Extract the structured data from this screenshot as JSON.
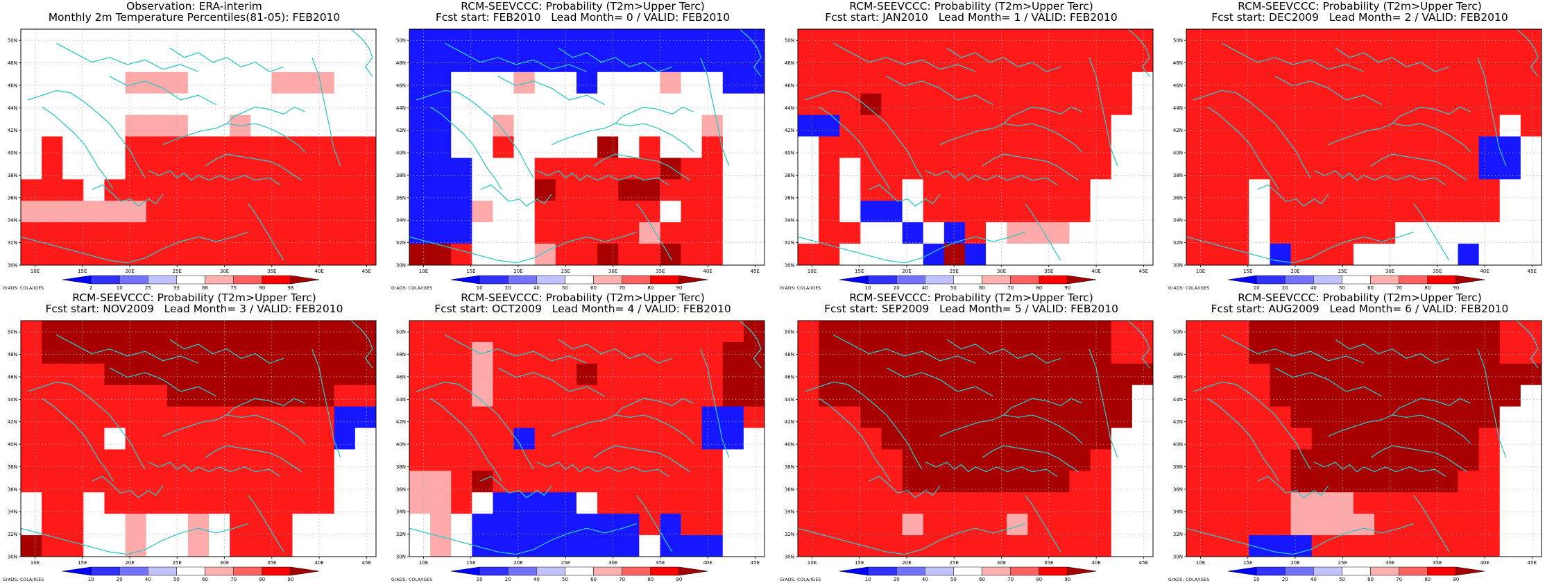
{
  "axes": {
    "lon_labels": [
      "10E",
      "15E",
      "20E",
      "25E",
      "30E",
      "35E",
      "40E",
      "45E"
    ],
    "lat_labels": [
      "30N",
      "32N",
      "34N",
      "36N",
      "38N",
      "40N",
      "42N",
      "44N",
      "46N",
      "48N",
      "50N"
    ],
    "lon_range": [
      8.5,
      46.0
    ],
    "lat_range": [
      30.0,
      51.0
    ]
  },
  "credit": "GrADS: COLA/IGES",
  "coastline_color": "#2fc6c6",
  "colorbars": {
    "obs": {
      "labels": [
        "2",
        "10",
        "25",
        "33",
        "66",
        "75",
        "90",
        "98"
      ],
      "colors": [
        "#0000ff",
        "#3030ff",
        "#7373ff",
        "#c2c2ff",
        "#ffffff",
        "#ffb0b0",
        "#ff6060",
        "#ff0000",
        "#a00000"
      ]
    },
    "prob": {
      "labels": [
        "10",
        "20",
        "40",
        "50",
        "60",
        "70",
        "80",
        "90"
      ],
      "colors": [
        "#0000ff",
        "#3030ff",
        "#7373ff",
        "#c2c2ff",
        "#ffffff",
        "#ffb0b0",
        "#ff6060",
        "#ff0000",
        "#a00000"
      ]
    }
  },
  "panels": [
    {
      "title1": "Observation: ERA-interim",
      "title2": "Monthly 2m Temperature Percentiles(81-05): FEB2010",
      "bar": "obs",
      "grid": [
        "wwwwwwwwwwwwwwwww",
        "wwwwwwwwwwwwwwwww",
        "wwwwwpppwwwwpppww",
        "wwwwwwwwwwwwwwwww",
        "wwwwwpppwwpwwwwww",
        "wrwwwrrrrrrrrrrrr",
        "wrwwwrrrrrrrrrrrr",
        "rrrwrrrrrrrrrrrrr",
        "pppppprrrrrrrrrrr",
        "rrrrrrrrrrrrrrrrr",
        "rrrrrrrrrrrrrrrrr"
      ]
    },
    {
      "title1": "RCM-SEEVCCC: Probability (T2m>Upper Terc)",
      "title2": "Fcst start: FEB2010   Lead Month= 0 / VALID: FEB2010",
      "bar": "prob",
      "grid": [
        "bbbbbbbbbbbbbbbbb",
        "bbbbbbbbbbbbbbbbb",
        "bbwwwpwwbwwwpwwbb",
        "bbwwwwwwwwwwwwwww",
        "bbwwpwwwwwwwwwpww",
        "bbwwrwwwwdwrwwrww",
        "bbbwwwrrrrrrdrrww",
        "bbbwwwdrrrddrrrww",
        "bbbpwwrrrrrrwrrww",
        "bbbwwwrrrrrprrrww",
        "ddrwwwprrdrrdrrww"
      ]
    },
    {
      "title1": "RCM-SEEVCCC: Probability (T2m>Upper Terc)",
      "title2": "Fcst start: JAN2010   Lead Month= 1 / VALID: FEB2010",
      "bar": "prob",
      "grid": [
        "rrrrrrrrrrrrrrrrr",
        "rrrrrrrrrrrrrrrrr",
        "rrrrrrrrrrrrrrrrw",
        "rrrdrrrrrrrrrrrrw",
        "bbrrrrrrrrrrrrrww",
        "wrrrrrrrrrrrrrrww",
        "wrwrrrrrrrrrrrrww",
        "wrwrrwrrrrrrrrwww",
        "wrwbbwrrrrrrrrwww",
        "wrrwwbwbrwpppwwww",
        "rrwwwwbdbwwwwwwww"
      ]
    },
    {
      "title1": "RCM-SEEVCCC: Probability (T2m>Upper Terc)",
      "title2": "Fcst start: DEC2009   Lead Month= 2 / VALID: FEB2010",
      "bar": "prob",
      "grid": [
        "rrrrrrrrrrrrrrrrr",
        "rrrrrrrrrrrrrrrrr",
        "rrrrrrrrrrrrrrrrr",
        "rrrrrrrrrrrrrrrrr",
        "rrrrrrrrrrrrrrrwr",
        "rrrrrrrrrrrrrrbbw",
        "rrrrrrrrrrrrrrbbw",
        "rrrwrrrrrrrrrrrww",
        "rrrwrrrrrrrrrrrww",
        "rrrwrrrrrrwwwwwww",
        "rrrwbrrrwwwwwbwww"
      ]
    },
    {
      "title1": "RCM-SEEVCCC: Probability (T2m>Upper Terc)",
      "title2": "Fcst start: NOV2009   Lead Month= 3 / VALID: FEB2010",
      "bar": "prob",
      "grid": [
        "rdddddddddddddddd",
        "rdddddddddddddddd",
        "rrrrddddddddddddd",
        "rrrrrrrddddddddrr",
        "rrrrrrrrrrrrrrrbb",
        "rrrrwrrrrrrrrrrbw",
        "rrrrrrrrrrrrrrrww",
        "rrrrrrrrrrrrrrrww",
        "wrrwrrrrrrrrrrrww",
        "wrrwwpwwpwrrrwwww",
        "drrwwpwwpwrrrwwww"
      ]
    },
    {
      "title1": "RCM-SEEVCCC: Probability (T2m>Upper Terc)",
      "title2": "Fcst start: OCT2009   Lead Month= 4 / VALID: FEB2010",
      "bar": "prob",
      "grid": [
        "rrrrrrrrrrrrrrrrd",
        "rrrprrrrrrrrrrrdd",
        "rrrprrrrdrrrrrrdd",
        "rrrprrrrrrrrrrrdd",
        "rrrrrrrrrrrrrrbbr",
        "rrrrrbrrrrrrrrbbw",
        "rrrrrrrrrrrrrrrww",
        "pprdrrrrrrrrrrrww",
        "pprwbbbbwrrrrrrww",
        "wpwbbbbbbbbrbrrww",
        "wpwbbbbbbbbwbbbww"
      ]
    },
    {
      "title1": "RCM-SEEVCCC: Probability (T2m>Upper Terc)",
      "title2": "Fcst start: SEP2009   Lead Month= 5 / VALID: FEB2010",
      "bar": "prob",
      "grid": [
        "rddddddddddddddrr",
        "rddddddddddddddrr",
        "rdddddddddddddddd",
        "rdddddddddddddddw",
        "rrrdddddddddddddw",
        "rrrrdddddddddddww",
        "rrrrrdddddddddrww",
        "rrrrrddddddddrrww",
        "rrrrrrrrrrrrrrrww",
        "rrrrrprrrrprrrrww",
        "rrrrrrrrrrrrrrrww"
      ]
    },
    {
      "title1": "RCM-SEEVCCC: Probability (T2m>Upper Terc)",
      "title2": "Fcst start: AUG2009   Lead Month= 6 / VALID: FEB2010",
      "bar": "prob",
      "grid": [
        "rrrddddddddddddrr",
        "rrrddddddddddddrr",
        "rrrrddddddddddddd",
        "rrrrddddddddddddw",
        "rrrrrddddddddddww",
        "rrrrrrddddddddrww",
        "rrrrrdddddddddrww",
        "rrrrrddddddddrrww",
        "rrrrrppprrrrrrrww",
        "rrrrrpppprrrrrrww",
        "rrrbbbrrrrrrrrrww"
      ]
    }
  ]
}
